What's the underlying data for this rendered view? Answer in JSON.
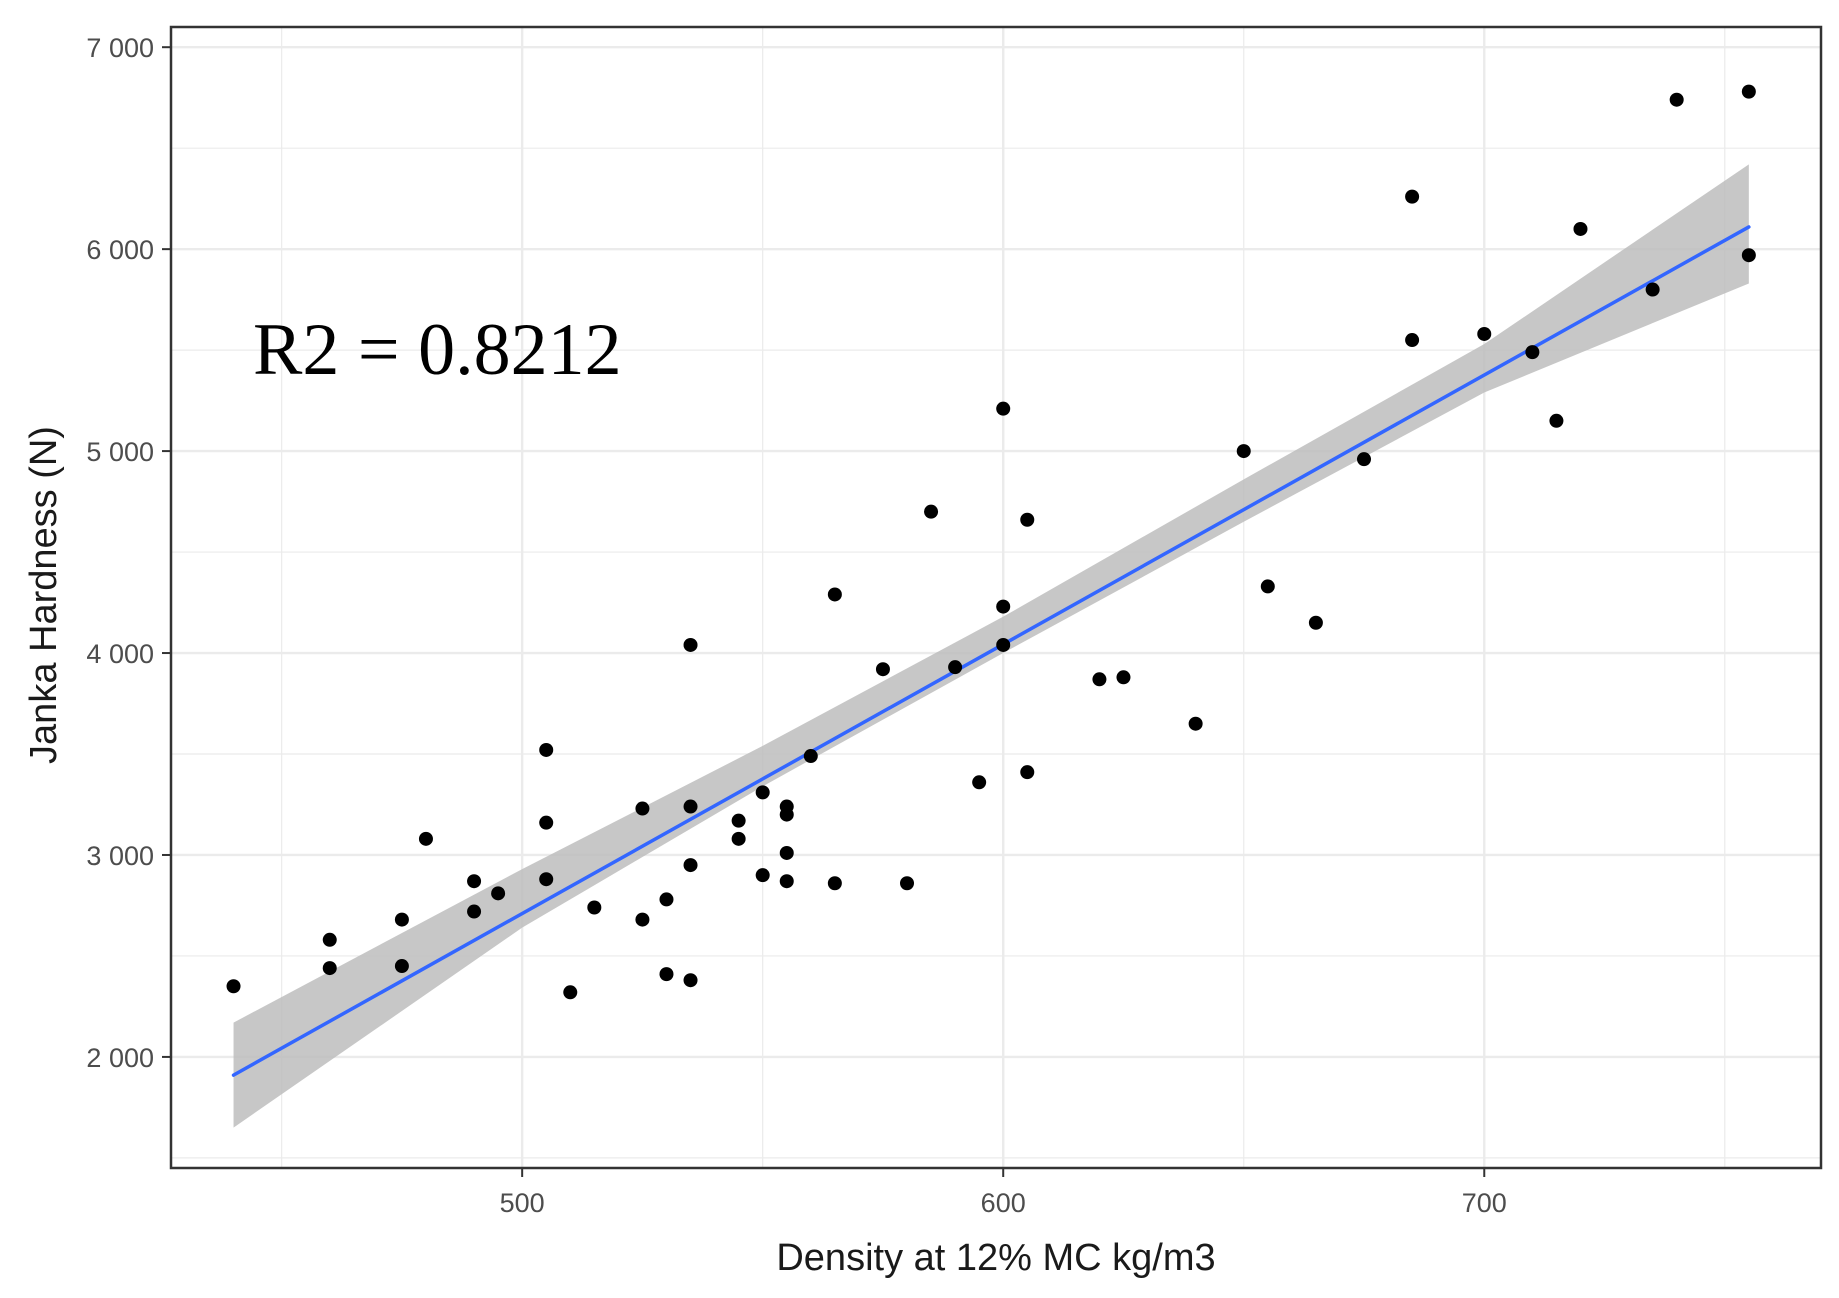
{
  "chart_data": {
    "type": "scatter",
    "xlabel": "Density at 12% MC kg/m3",
    "ylabel": "Janka Hardness (N)",
    "xlim": [
      427,
      770
    ],
    "ylim": [
      1450,
      7100
    ],
    "x_ticks": [
      500,
      600,
      700
    ],
    "x_tick_labels": [
      "500",
      "600",
      "700"
    ],
    "y_ticks": [
      2000,
      3000,
      4000,
      5000,
      6000,
      7000
    ],
    "y_tick_labels": [
      "2 000",
      "3 000",
      "4 000",
      "5 000",
      "6 000",
      "7 000"
    ],
    "grid": true,
    "annotation": "R2 = 0.8212",
    "colors": {
      "fit_line": "#3366ff",
      "confidence_band": "#bdbdbd",
      "points": "#000000",
      "grid": "#ebebeb"
    },
    "points": [
      {
        "x": 440,
        "y": 2350
      },
      {
        "x": 460,
        "y": 2440
      },
      {
        "x": 460,
        "y": 2580
      },
      {
        "x": 475,
        "y": 2450
      },
      {
        "x": 475,
        "y": 2680
      },
      {
        "x": 480,
        "y": 3080
      },
      {
        "x": 490,
        "y": 2720
      },
      {
        "x": 490,
        "y": 2870
      },
      {
        "x": 495,
        "y": 2810
      },
      {
        "x": 505,
        "y": 2880
      },
      {
        "x": 505,
        "y": 3160
      },
      {
        "x": 505,
        "y": 3520
      },
      {
        "x": 510,
        "y": 2320
      },
      {
        "x": 515,
        "y": 2740
      },
      {
        "x": 525,
        "y": 2680
      },
      {
        "x": 525,
        "y": 3230
      },
      {
        "x": 530,
        "y": 2410
      },
      {
        "x": 530,
        "y": 2780
      },
      {
        "x": 535,
        "y": 2380
      },
      {
        "x": 535,
        "y": 2950
      },
      {
        "x": 535,
        "y": 3240
      },
      {
        "x": 535,
        "y": 4040
      },
      {
        "x": 545,
        "y": 3080
      },
      {
        "x": 545,
        "y": 3170
      },
      {
        "x": 550,
        "y": 2900
      },
      {
        "x": 550,
        "y": 3310
      },
      {
        "x": 555,
        "y": 2870
      },
      {
        "x": 555,
        "y": 3010
      },
      {
        "x": 555,
        "y": 3200
      },
      {
        "x": 555,
        "y": 3240
      },
      {
        "x": 560,
        "y": 3490
      },
      {
        "x": 565,
        "y": 2860
      },
      {
        "x": 565,
        "y": 4290
      },
      {
        "x": 575,
        "y": 3920
      },
      {
        "x": 580,
        "y": 2860
      },
      {
        "x": 585,
        "y": 4700
      },
      {
        "x": 590,
        "y": 3930
      },
      {
        "x": 595,
        "y": 3360
      },
      {
        "x": 600,
        "y": 4040
      },
      {
        "x": 600,
        "y": 4230
      },
      {
        "x": 600,
        "y": 5210
      },
      {
        "x": 605,
        "y": 3410
      },
      {
        "x": 605,
        "y": 4660
      },
      {
        "x": 620,
        "y": 3870
      },
      {
        "x": 625,
        "y": 3880
      },
      {
        "x": 640,
        "y": 3650
      },
      {
        "x": 650,
        "y": 5000
      },
      {
        "x": 655,
        "y": 4330
      },
      {
        "x": 665,
        "y": 4150
      },
      {
        "x": 675,
        "y": 4960
      },
      {
        "x": 685,
        "y": 5550
      },
      {
        "x": 685,
        "y": 6260
      },
      {
        "x": 700,
        "y": 5580
      },
      {
        "x": 710,
        "y": 5490
      },
      {
        "x": 715,
        "y": 5150
      },
      {
        "x": 720,
        "y": 6100
      },
      {
        "x": 735,
        "y": 5800
      },
      {
        "x": 740,
        "y": 6740
      },
      {
        "x": 755,
        "y": 5970
      },
      {
        "x": 755,
        "y": 6780
      }
    ],
    "fit": {
      "type": "linear",
      "x": [
        440,
        755
      ],
      "y": [
        1910,
        6110
      ]
    },
    "confidence_band": {
      "x": [
        440,
        500,
        550,
        600,
        650,
        700,
        755
      ],
      "lower": [
        1650,
        2640,
        3340,
        4000,
        4650,
        5290,
        5830
      ],
      "upper": [
        2170,
        2930,
        3540,
        4180,
        4860,
        5530,
        6420
      ]
    }
  }
}
